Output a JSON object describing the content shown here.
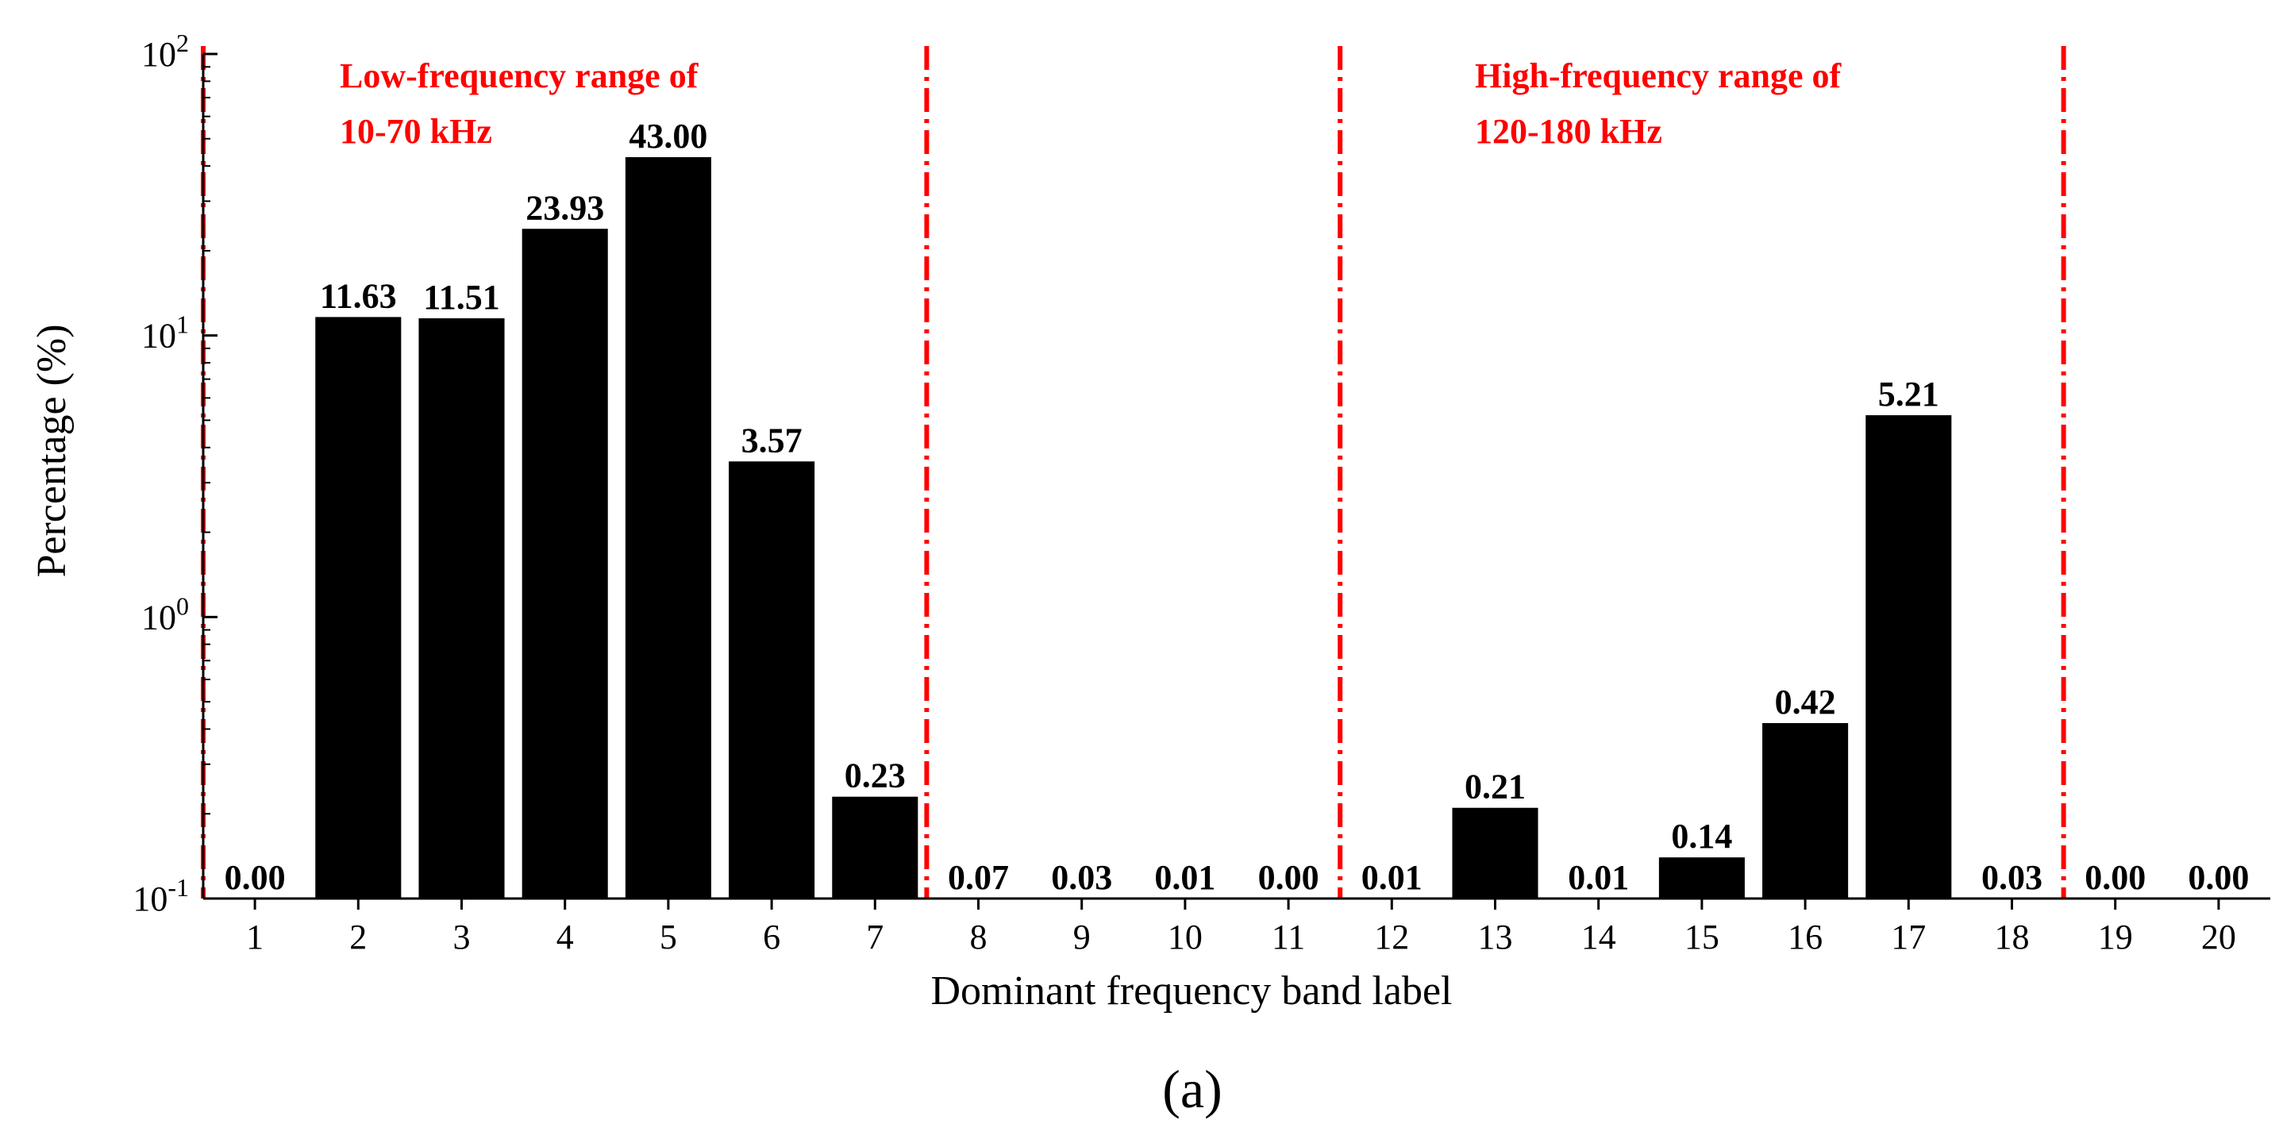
{
  "chart_data": {
    "type": "bar",
    "y_scale": "log",
    "categories": [
      "1",
      "2",
      "3",
      "4",
      "5",
      "6",
      "7",
      "8",
      "9",
      "10",
      "11",
      "12",
      "13",
      "14",
      "15",
      "16",
      "17",
      "18",
      "19",
      "20"
    ],
    "values": [
      0.0,
      11.63,
      11.51,
      23.93,
      43.0,
      3.57,
      0.23,
      0.07,
      0.03,
      0.01,
      0.0,
      0.01,
      0.21,
      0.01,
      0.14,
      0.42,
      5.21,
      0.03,
      0.0,
      0.0
    ],
    "value_labels": [
      "0.00",
      "11.63",
      "11.51",
      "23.93",
      "43.00",
      "3.57",
      "0.23",
      "0.07",
      "0.03",
      "0.01",
      "0.00",
      "0.01",
      "0.21",
      "0.01",
      "0.14",
      "0.42",
      "5.21",
      "0.03",
      "0.00",
      "0.00"
    ],
    "xlabel": "Dominant frequency band label",
    "ylabel": "Percentage (%)",
    "ylim": [
      0.1,
      100
    ],
    "y_ticks": [
      {
        "value": 0.1,
        "base": "10",
        "exp": "-1"
      },
      {
        "value": 1,
        "base": "10",
        "exp": "0"
      },
      {
        "value": 10,
        "base": "10",
        "exp": "1"
      },
      {
        "value": 100,
        "base": "10",
        "exp": "2"
      }
    ],
    "boundaries": [
      0.5,
      7.5,
      11.5,
      18.5
    ],
    "annotations": [
      {
        "lines": [
          "Low-frequency range of",
          "10-70 kHz"
        ],
        "color": "#ff0000"
      },
      {
        "lines": [
          "High-frequency range of",
          "120-180 kHz"
        ],
        "color": "#ff0000"
      }
    ],
    "bar_color": "#000000",
    "boundary_color": "#ff0000",
    "panel_label": "(a)"
  }
}
